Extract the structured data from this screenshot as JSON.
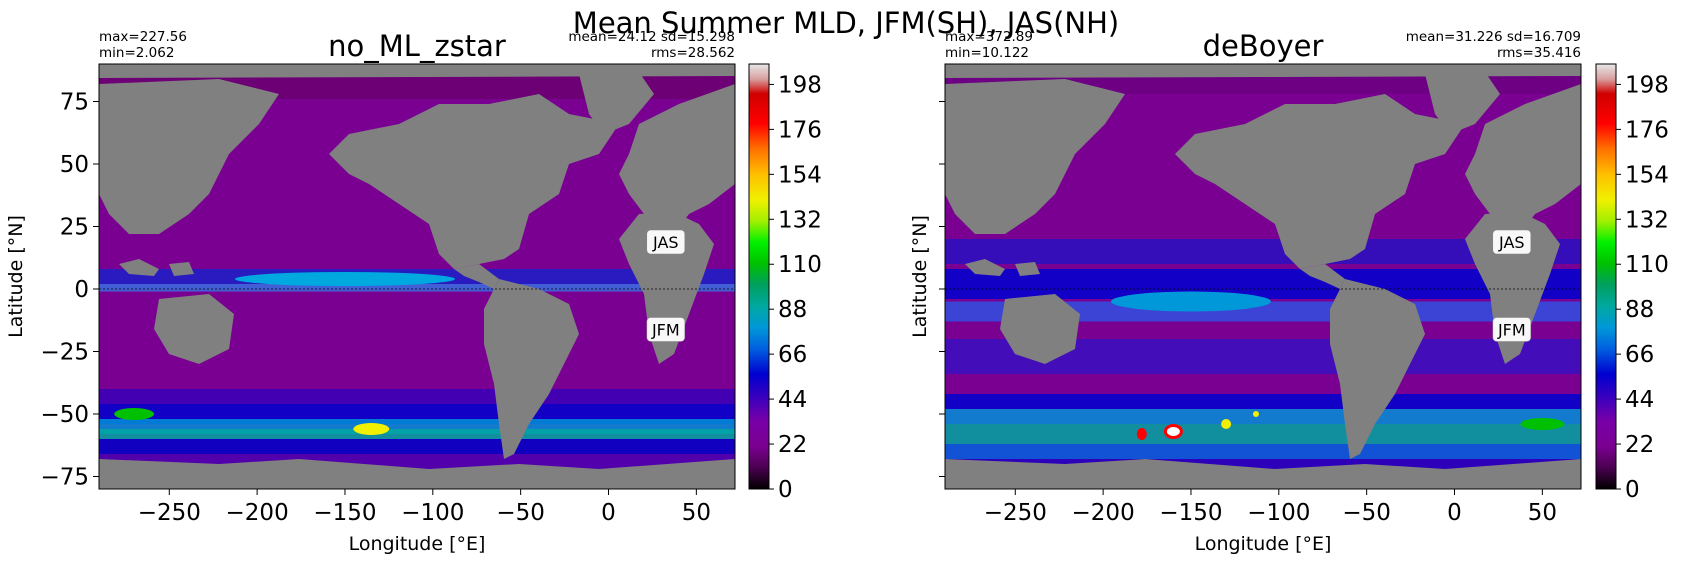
{
  "figure": {
    "suptitle": "Mean Summer MLD, JFM(SH), JAS(NH)"
  },
  "panels": [
    {
      "title": "no_ML_zstar",
      "stats_left": [
        "max=227.56",
        "min=2.062"
      ],
      "stats_right": [
        "mean=24.12 sd=15.298",
        "rms=28.562"
      ],
      "xlabel": "Longitude [°E]",
      "ylabel": "Latitude [°N]",
      "labels": [
        "JAS",
        "JFM"
      ]
    },
    {
      "title": "deBoyer",
      "stats_left": [
        "max=372.89",
        "min=10.122"
      ],
      "stats_right": [
        "mean=31.226 sd=16.709",
        "rms=35.416"
      ],
      "xlabel": "Longitude [°E]",
      "ylabel": "Latitude [°N]",
      "labels": [
        "JAS",
        "JFM"
      ]
    }
  ],
  "chart_data": [
    {
      "type": "heatmap",
      "title": "no_ML_zstar",
      "xlabel": "Longitude [°E]",
      "ylabel": "Latitude [°N]",
      "xlim": [
        -290,
        72
      ],
      "ylim": [
        -80,
        90
      ],
      "xticks": [
        -250,
        -200,
        -150,
        -100,
        -50,
        0,
        50
      ],
      "yticks": [
        75,
        50,
        25,
        0,
        -25,
        -50,
        -75
      ],
      "colorbar": {
        "vmin": 0,
        "vmax": 208,
        "ticks": [
          0,
          22,
          44,
          66,
          88,
          110,
          132,
          154,
          176,
          198
        ]
      },
      "stats": {
        "max": 227.56,
        "min": 2.062,
        "mean": 24.12,
        "sd": 15.298,
        "rms": 28.562
      },
      "annotations": [
        "JAS",
        "JFM"
      ],
      "equator_line": true,
      "grid": false
    },
    {
      "type": "heatmap",
      "title": "deBoyer",
      "xlabel": "Longitude [°E]",
      "ylabel": "Latitude [°N]",
      "xlim": [
        -290,
        72
      ],
      "ylim": [
        -80,
        90
      ],
      "xticks": [
        -250,
        -200,
        -150,
        -100,
        -50,
        0,
        50
      ],
      "yticks": [
        75,
        50,
        25,
        0,
        -25,
        -50,
        -75
      ],
      "colorbar": {
        "vmin": 0,
        "vmax": 208,
        "ticks": [
          0,
          22,
          44,
          66,
          88,
          110,
          132,
          154,
          176,
          198
        ]
      },
      "stats": {
        "max": 372.89,
        "min": 10.122,
        "mean": 31.226,
        "sd": 16.709,
        "rms": 35.416
      },
      "annotations": [
        "JAS",
        "JFM"
      ],
      "equator_line": true,
      "grid": false
    }
  ]
}
